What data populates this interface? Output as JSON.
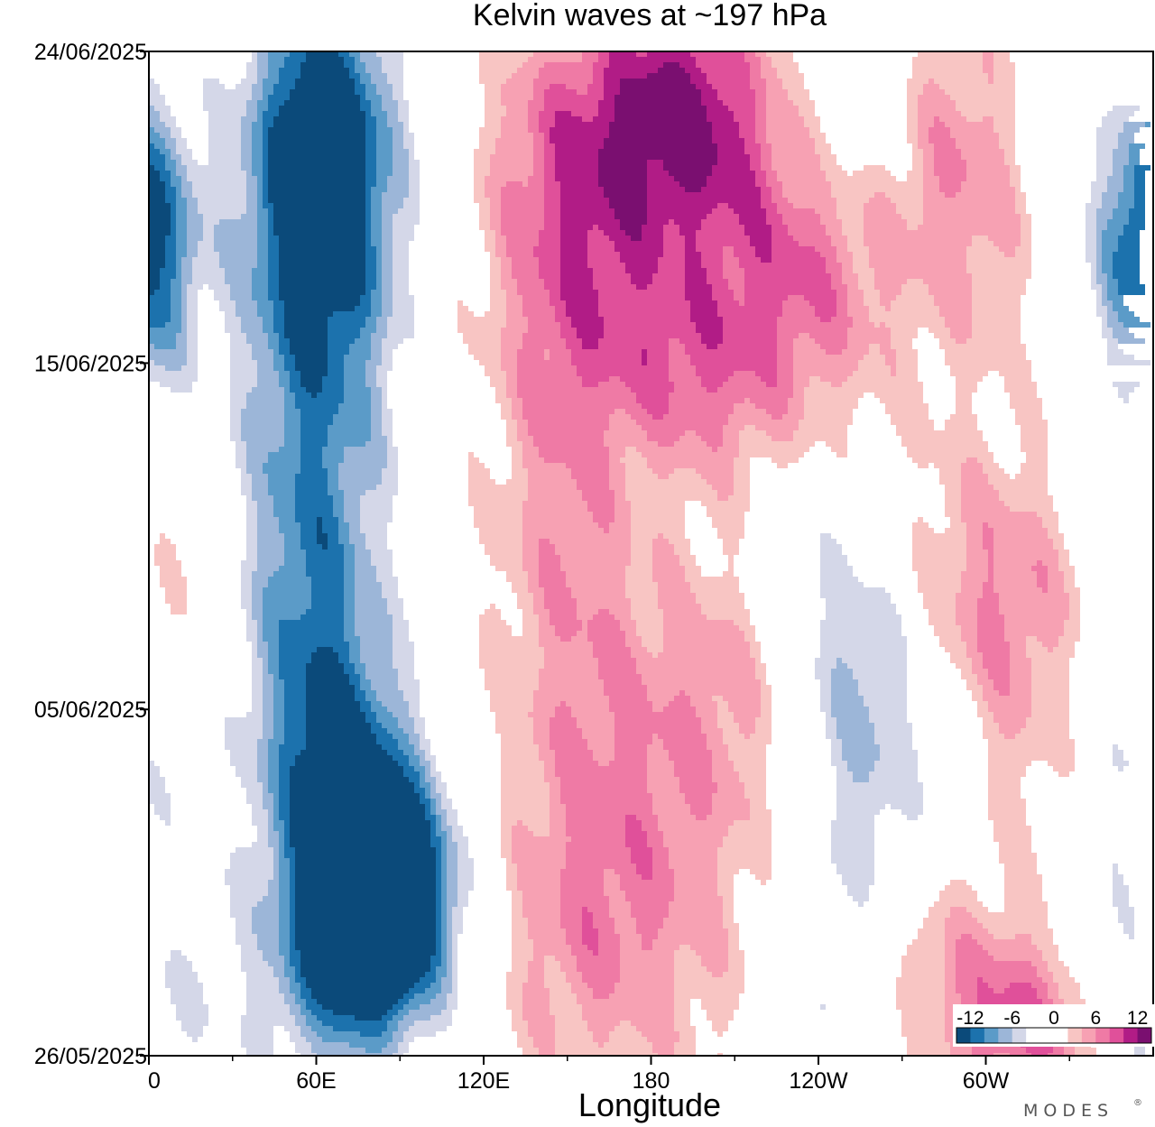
{
  "chart_data": {
    "type": "heatmap",
    "title": "Kelvin waves at ~197 hPa",
    "xlabel": "Longitude",
    "ylabel": "",
    "x_ticks": [
      "0",
      "60E",
      "120E",
      "180",
      "120W",
      "60W"
    ],
    "x_tick_values": [
      0,
      60,
      120,
      180,
      240,
      300
    ],
    "xlim": [
      0,
      360
    ],
    "y_ticks": [
      "24/06/2025",
      "15/06/2025",
      "05/06/2025",
      "26/05/2025"
    ],
    "y_tick_days": [
      29,
      20,
      10,
      0
    ],
    "ylim": [
      "26/05/2025",
      "24/06/2025"
    ],
    "colorbar": {
      "labels": [
        "-12",
        "-6",
        "0",
        "6",
        "12"
      ],
      "label_values": [
        -12,
        -6,
        0,
        6,
        12
      ],
      "levels": [
        -14,
        -12,
        -10,
        -8,
        -6,
        -4,
        -2,
        2,
        4,
        6,
        8,
        10,
        12,
        14
      ],
      "colors": [
        "#0b4a7a",
        "#1c72ad",
        "#5b9bc8",
        "#9cb6d8",
        "#d4d7e8",
        "#ffffff",
        "#ffffff",
        "#f8c5c3",
        "#f7a1b3",
        "#ef7aa5",
        "#e0509a",
        "#b11c86",
        "#7a0f70"
      ]
    },
    "blobs": [
      {
        "lon": 62,
        "day": 26.0,
        "slon": 18,
        "sday": 3.5,
        "amp": -13,
        "tilt": 0
      },
      {
        "lon": 60,
        "day": 20.5,
        "slon": 22,
        "sday": 6,
        "amp": -8,
        "tilt": 0
      },
      {
        "lon": 58,
        "day": 12.5,
        "slon": 16,
        "sday": 4,
        "amp": -6,
        "tilt": 0
      },
      {
        "lon": 70,
        "day": 8,
        "slon": 20,
        "sday": 3,
        "amp": -7,
        "tilt": 0
      },
      {
        "lon": 88,
        "day": 5.5,
        "slon": 22,
        "sday": 2.8,
        "amp": -10,
        "tilt": -1.5
      },
      {
        "lon": 80,
        "day": 3.5,
        "slon": 16,
        "sday": 2,
        "amp": -13,
        "tilt": 0
      },
      {
        "lon": 58,
        "day": 2,
        "slon": 24,
        "sday": 3,
        "amp": -5,
        "tilt": 0
      },
      {
        "lon": 2,
        "day": 23.5,
        "slon": 12,
        "sday": 3,
        "amp": -6,
        "tilt": 0
      },
      {
        "lon": 8,
        "day": 12,
        "slon": 12,
        "sday": 3.5,
        "amp": 3,
        "tilt": 0
      },
      {
        "lon": 5,
        "day": 9,
        "slon": 16,
        "sday": 3,
        "amp": -3,
        "tilt": 0
      },
      {
        "lon": 160,
        "day": 26,
        "slon": 24,
        "sday": 3,
        "amp": 8,
        "tilt": 0
      },
      {
        "lon": 195,
        "day": 27.5,
        "slon": 22,
        "sday": 2.5,
        "amp": 10,
        "tilt": 0
      },
      {
        "lon": 148,
        "day": 17.5,
        "slon": 18,
        "sday": 6,
        "amp": 5,
        "tilt": -0.8
      },
      {
        "lon": 195,
        "day": 20,
        "slon": 30,
        "sday": 2.5,
        "amp": 8,
        "tilt": -4
      },
      {
        "lon": 232,
        "day": 23,
        "slon": 24,
        "sday": 2.5,
        "amp": 7,
        "tilt": -3
      },
      {
        "lon": 258,
        "day": 11,
        "slon": 24,
        "sday": 4,
        "amp": -7,
        "tilt": -3.5
      },
      {
        "lon": 247,
        "day": 5,
        "slon": 18,
        "sday": 3,
        "amp": -5,
        "tilt": 0
      },
      {
        "lon": 175,
        "day": 7,
        "slon": 38,
        "sday": 5,
        "amp": 5,
        "tilt": 0
      },
      {
        "lon": 155,
        "day": 3,
        "slon": 30,
        "sday": 3,
        "amp": 3,
        "tilt": 0
      },
      {
        "lon": 210,
        "day": 11,
        "slon": 20,
        "sday": 3,
        "amp": 3,
        "tilt": 0
      },
      {
        "lon": 300,
        "day": 10.5,
        "slon": 22,
        "sday": 4,
        "amp": 5,
        "tilt": 0
      },
      {
        "lon": 305,
        "day": 14,
        "slon": 26,
        "sday": 2.5,
        "amp": 3,
        "tilt": -2
      },
      {
        "lon": 290,
        "day": 25.5,
        "slon": 18,
        "sday": 3.5,
        "amp": 6,
        "tilt": -1
      },
      {
        "lon": 355,
        "day": 23.5,
        "slon": 14,
        "sday": 3,
        "amp": -8,
        "tilt": 0
      },
      {
        "lon": 285,
        "day": 2,
        "slon": 26,
        "sday": 2.5,
        "amp": 5,
        "tilt": -3
      },
      {
        "lon": 318,
        "day": 0.8,
        "slon": 18,
        "sday": 1.8,
        "amp": 6,
        "tilt": -2
      },
      {
        "lon": 350,
        "day": 8,
        "slon": 12,
        "sday": 4,
        "amp": -3,
        "tilt": 0
      },
      {
        "lon": 255,
        "day": 28,
        "slon": 16,
        "sday": 2,
        "amp": -3,
        "tilt": 0
      },
      {
        "lon": 0,
        "day": 0.8,
        "slon": 16,
        "sday": 2,
        "amp": -4,
        "tilt": 0
      },
      {
        "lon": 255,
        "day": 0.8,
        "slon": 16,
        "sday": 1.5,
        "amp": -3,
        "tilt": 0
      }
    ]
  },
  "watermark": "MODES"
}
